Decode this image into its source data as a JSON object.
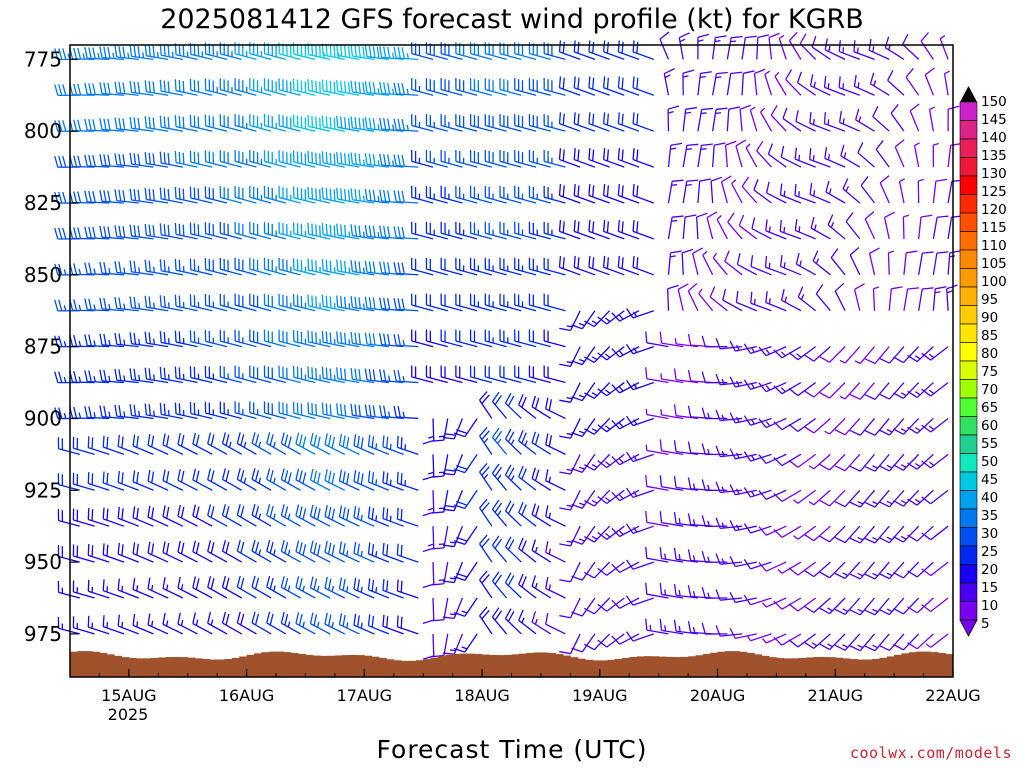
{
  "chart_data": {
    "type": "wind-barb-profile",
    "title": "2025081412 GFS forecast wind profile (kt) for KGRB",
    "xlabel": "Forecast Time (UTC)",
    "ylabel": "",
    "x_ticks": [
      "15AUG",
      "16AUG",
      "17AUG",
      "18AUG",
      "19AUG",
      "20AUG",
      "21AUG",
      "22AUG"
    ],
    "x_year": "2025",
    "y_ticks": [
      775,
      800,
      825,
      850,
      875,
      900,
      925,
      950,
      975
    ],
    "ylim_hpa": [
      770,
      990
    ],
    "xlim_hours": [
      -12,
      168
    ],
    "colorbar": {
      "ticks": [
        150,
        145,
        140,
        135,
        130,
        125,
        120,
        115,
        110,
        105,
        100,
        95,
        90,
        85,
        80,
        75,
        70,
        65,
        60,
        55,
        50,
        45,
        40,
        35,
        30,
        25,
        20,
        15,
        10,
        5
      ],
      "colors": [
        "#cc22cc",
        "#dd2288",
        "#e8205a",
        "#f01838",
        "#ff0000",
        "#ff2a00",
        "#ff5000",
        "#ff6e00",
        "#ff8800",
        "#ff9a00",
        "#ffb000",
        "#ffcc00",
        "#ffe600",
        "#ffff00",
        "#d8ff00",
        "#a0ff00",
        "#50ff30",
        "#30e060",
        "#20d090",
        "#10e8c0",
        "#00c8e0",
        "#00a0f0",
        "#0078f0",
        "#0050f0",
        "#0028f0",
        "#1a00f0",
        "#4a00f0",
        "#7a00f0"
      ]
    },
    "terrain_color": "#a0522d",
    "credit": "coolwx.com/models"
  }
}
